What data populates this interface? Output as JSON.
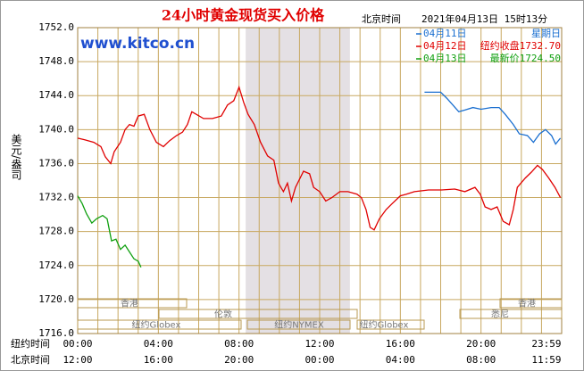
{
  "chart_data": {
    "type": "line",
    "title": "24小时黄金现货买入价格",
    "time_label": "北京时间",
    "timestamp": "2021年04月13日 15时13分",
    "watermark": "www.kitco.cn",
    "ylabel": "美元/盎司",
    "x_row_labels": [
      "纽约时间",
      "北京时间"
    ],
    "xlim": [
      0,
      24
    ],
    "ylim": [
      1716,
      1752
    ],
    "yticks": [
      {
        "value": 1716,
        "label": "1716.0"
      },
      {
        "value": 1720,
        "label": "1720.0"
      },
      {
        "value": 1724,
        "label": "1724.0"
      },
      {
        "value": 1728,
        "label": "1728.0"
      },
      {
        "value": 1732,
        "label": "1732.0"
      },
      {
        "value": 1736,
        "label": "1736.0"
      },
      {
        "value": 1740,
        "label": "1740.0"
      },
      {
        "value": 1744,
        "label": "1744.0"
      },
      {
        "value": 1748,
        "label": "1748.0"
      },
      {
        "value": 1752,
        "label": "1752.0"
      }
    ],
    "xticks": [
      {
        "value": 0,
        "label": "00:00"
      },
      {
        "value": 4,
        "label": "04:00"
      },
      {
        "value": 8,
        "label": "08:00"
      },
      {
        "value": 12,
        "label": "12:00"
      },
      {
        "value": 16,
        "label": "16:00"
      },
      {
        "value": 20,
        "label": "20:00"
      },
      {
        "value": 23.98,
        "label": "23:59"
      }
    ],
    "x2ticks": [
      {
        "value": 0,
        "label": "12:00"
      },
      {
        "value": 4,
        "label": "16:00"
      },
      {
        "value": 8,
        "label": "20:00"
      },
      {
        "value": 12,
        "label": "00:00"
      },
      {
        "value": 16,
        "label": "04:00"
      },
      {
        "value": 20,
        "label": "08:00"
      },
      {
        "value": 23.98,
        "label": "11:59"
      }
    ],
    "grid": true,
    "shaded_range": [
      8.33,
      13.5
    ],
    "markets": [
      "香港",
      "伦敦",
      "纽约Globex",
      "纽约NYMEX",
      "纽约Globex",
      "悉尼",
      "香港"
    ],
    "series": [
      {
        "name": "04月11日",
        "note": "星期日",
        "color": "#1a6fd0",
        "x": [
          17.2,
          18.0,
          18.3,
          18.6,
          18.9,
          19.2,
          19.6,
          20.0,
          20.5,
          20.9,
          21.2,
          21.6,
          21.9,
          22.3,
          22.6,
          22.9,
          23.2,
          23.5,
          23.7,
          23.94
        ],
        "values": [
          1744.4,
          1744.4,
          1743.7,
          1742.9,
          1742.1,
          1742.3,
          1742.6,
          1742.4,
          1742.6,
          1742.6,
          1741.8,
          1740.6,
          1739.5,
          1739.3,
          1738.5,
          1739.5,
          1740.0,
          1739.3,
          1738.3,
          1739.0
        ]
      },
      {
        "name": "04月12日",
        "note": "纽约收盘1732.70",
        "color": "#e00000",
        "x": [
          0,
          0.35,
          0.8,
          1.15,
          1.37,
          1.64,
          1.81,
          2.12,
          2.35,
          2.57,
          2.79,
          3.0,
          3.3,
          3.58,
          3.9,
          4.25,
          4.56,
          4.9,
          5.2,
          5.44,
          5.66,
          5.88,
          6.24,
          6.68,
          7.12,
          7.43,
          7.74,
          8.0,
          8.23,
          8.45,
          8.76,
          9.07,
          9.42,
          9.73,
          9.96,
          10.2,
          10.4,
          10.6,
          10.8,
          11.2,
          11.5,
          11.7,
          12.0,
          12.3,
          12.6,
          13.0,
          13.4,
          13.85,
          14.07,
          14.3,
          14.5,
          14.7,
          14.96,
          15.3,
          15.6,
          16.0,
          16.3,
          16.7,
          17.4,
          18.05,
          18.7,
          19.2,
          19.7,
          19.96,
          20.2,
          20.5,
          20.8,
          21.1,
          21.4,
          21.6,
          21.8,
          22.2,
          22.5,
          22.8,
          23.05,
          23.36,
          23.67,
          23.94
        ],
        "values": [
          1739.0,
          1738.8,
          1738.5,
          1738.0,
          1736.8,
          1736.0,
          1737.4,
          1738.5,
          1740.0,
          1740.6,
          1740.4,
          1741.6,
          1741.8,
          1740.0,
          1738.5,
          1738.0,
          1738.7,
          1739.3,
          1739.7,
          1740.6,
          1742.1,
          1741.8,
          1741.3,
          1741.3,
          1741.6,
          1742.9,
          1743.4,
          1745.0,
          1743.2,
          1741.8,
          1740.6,
          1738.5,
          1736.9,
          1736.4,
          1733.7,
          1732.7,
          1733.7,
          1731.6,
          1733.2,
          1735.1,
          1734.8,
          1733.2,
          1732.7,
          1731.6,
          1732.0,
          1732.7,
          1732.7,
          1732.4,
          1732.0,
          1730.6,
          1728.5,
          1728.2,
          1729.5,
          1730.6,
          1731.3,
          1732.2,
          1732.4,
          1732.7,
          1732.9,
          1732.9,
          1733.0,
          1732.7,
          1733.2,
          1732.4,
          1730.9,
          1730.6,
          1730.9,
          1729.2,
          1728.8,
          1730.6,
          1733.2,
          1734.3,
          1735.0,
          1735.8,
          1735.3,
          1734.3,
          1733.2,
          1732.0
        ]
      },
      {
        "name": "04月13日",
        "note": "最新价1724.50",
        "color": "#10a010",
        "x": [
          0,
          0.22,
          0.44,
          0.7,
          0.93,
          1.24,
          1.46,
          1.68,
          1.9,
          2.12,
          2.35,
          2.57,
          2.79,
          3.0,
          3.14
        ],
        "values": [
          1732.2,
          1731.3,
          1730.1,
          1729.0,
          1729.5,
          1729.9,
          1729.5,
          1726.9,
          1727.1,
          1725.9,
          1726.4,
          1725.6,
          1724.8,
          1724.5,
          1723.8
        ]
      }
    ]
  }
}
